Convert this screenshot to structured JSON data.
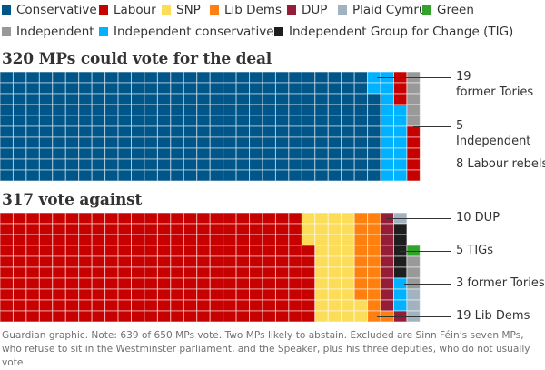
{
  "legend": [
    {
      "label": "Conservative",
      "key": "con"
    },
    {
      "label": "Labour",
      "key": "lab"
    },
    {
      "label": "SNP",
      "key": "snp"
    },
    {
      "label": "Lib Dems",
      "key": "ld"
    },
    {
      "label": "DUP",
      "key": "dup"
    },
    {
      "label": "Plaid Cymru",
      "key": "pc"
    },
    {
      "label": "Green",
      "key": "grn"
    },
    {
      "label": "Independent",
      "key": "ind"
    },
    {
      "label": "Independent conservatives",
      "key": "icon"
    },
    {
      "label": "Independent Group for Change (TIG)",
      "key": "tig"
    }
  ],
  "colors": {
    "con": "#005689",
    "lab": "#c70000",
    "snp": "#fcdd5a",
    "ld": "#ff7f0f",
    "dup": "#951d37",
    "pc": "#a1b3c0",
    "grn": "#33a22b",
    "ind": "#999999",
    "icon": "#00b2ff",
    "tig": "#1e1e1e"
  },
  "chart_data": {
    "type": "waffle",
    "rows_per_column": 10,
    "fill_order": "column-major, top to bottom",
    "panels": [
      {
        "title": "320 MPs could vote for the deal",
        "total": 320,
        "segments": [
          {
            "party": "Conservative",
            "key": "con",
            "count": 288
          },
          {
            "party": "Independent conservatives",
            "key": "icon",
            "count": 19
          },
          {
            "party": "Labour",
            "key": "lab",
            "count": 8
          },
          {
            "party": "Independent",
            "key": "ind",
            "count": 5
          }
        ],
        "cells_override": [
          {
            "col": 28,
            "rows": [
              "icon",
              "icon",
              "con",
              "con",
              "con",
              "con",
              "con",
              "con",
              "con",
              "con"
            ]
          },
          {
            "col": 29,
            "rows": [
              "icon",
              "icon",
              "icon",
              "icon",
              "icon",
              "icon",
              "icon",
              "icon",
              "icon",
              "icon"
            ]
          },
          {
            "col": 30,
            "rows": [
              "lab",
              "lab",
              "lab",
              "icon",
              "icon",
              "icon",
              "icon",
              "icon",
              "icon",
              "icon"
            ]
          },
          {
            "col": 31,
            "rows": [
              "ind",
              "ind",
              "ind",
              "ind",
              "ind",
              "lab",
              "lab",
              "lab",
              "lab",
              "lab"
            ]
          }
        ],
        "annotations": [
          {
            "text_line1": "19",
            "text_line2": "former Tories",
            "row": 0
          },
          {
            "text_line1": "5",
            "text_line2": "Independent",
            "row": 4.5
          },
          {
            "text_line1": "8 Labour rebels",
            "text_line2": "",
            "row": 8
          }
        ]
      },
      {
        "title": "317 vote against",
        "total": 317,
        "segments": [
          {
            "party": "Labour",
            "key": "lab",
            "count": 237
          },
          {
            "party": "SNP",
            "key": "snp",
            "count": 35
          },
          {
            "party": "Lib Dems",
            "key": "ld",
            "count": 19
          },
          {
            "party": "DUP",
            "key": "dup",
            "count": 10
          },
          {
            "party": "Plaid Cymru",
            "key": "pc",
            "count": 4
          },
          {
            "party": "Independent Group for Change (TIG)",
            "key": "tig",
            "count": 5
          },
          {
            "party": "Independent conservatives",
            "key": "icon",
            "count": 3
          },
          {
            "party": "Independent",
            "key": "ind",
            "count": 3
          },
          {
            "party": "Green",
            "key": "grn",
            "count": 1
          }
        ],
        "cells_override": [
          {
            "col": 23,
            "rows": [
              "snp",
              "snp",
              "snp",
              "lab",
              "lab",
              "lab",
              "lab",
              "lab",
              "lab",
              "lab"
            ]
          },
          {
            "col": 24,
            "rows": [
              "snp",
              "snp",
              "snp",
              "snp",
              "snp",
              "snp",
              "snp",
              "snp",
              "snp",
              "snp"
            ]
          },
          {
            "col": 25,
            "rows": [
              "snp",
              "snp",
              "snp",
              "snp",
              "snp",
              "snp",
              "snp",
              "snp",
              "snp",
              "snp"
            ]
          },
          {
            "col": 26,
            "rows": [
              "snp",
              "snp",
              "snp",
              "snp",
              "snp",
              "snp",
              "snp",
              "snp",
              "snp",
              "snp"
            ]
          },
          {
            "col": 27,
            "rows": [
              "ld",
              "ld",
              "ld",
              "ld",
              "ld",
              "ld",
              "ld",
              "ld",
              "snp",
              "snp"
            ]
          },
          {
            "col": 28,
            "rows": [
              "ld",
              "ld",
              "ld",
              "ld",
              "ld",
              "ld",
              "ld",
              "ld",
              "ld",
              "ld"
            ]
          },
          {
            "col": 29,
            "rows": [
              "dup",
              "dup",
              "dup",
              "dup",
              "dup",
              "dup",
              "dup",
              "dup",
              "dup",
              "ld"
            ]
          },
          {
            "col": 30,
            "rows": [
              "pc",
              "tig",
              "tig",
              "tig",
              "tig",
              "tig",
              "icon",
              "icon",
              "icon",
              "dup"
            ]
          },
          {
            "col": 31,
            "rows": [
              null,
              null,
              null,
              "grn",
              "ind",
              "ind",
              "ind",
              "pc",
              "pc",
              "pc"
            ]
          }
        ],
        "annotations": [
          {
            "text_line1": "10 DUP",
            "text_line2": "",
            "row": 0
          },
          {
            "text_line1": "5 TIGs",
            "text_line2": "",
            "row": 3
          },
          {
            "text_line1": "3 former Tories",
            "text_line2": "",
            "row": 6
          },
          {
            "text_line1": "19 Lib Dems",
            "text_line2": "",
            "row": 9
          }
        ]
      }
    ]
  },
  "footnote": "Guardian graphic. Note: 639 of 650 MPs vote. Two MPs likely to abstain. Excluded are Sinn Féin's seven MPs, who refuse to sit in the Westminster parliament, and the Speaker, plus his three deputies, who do not usually vote"
}
